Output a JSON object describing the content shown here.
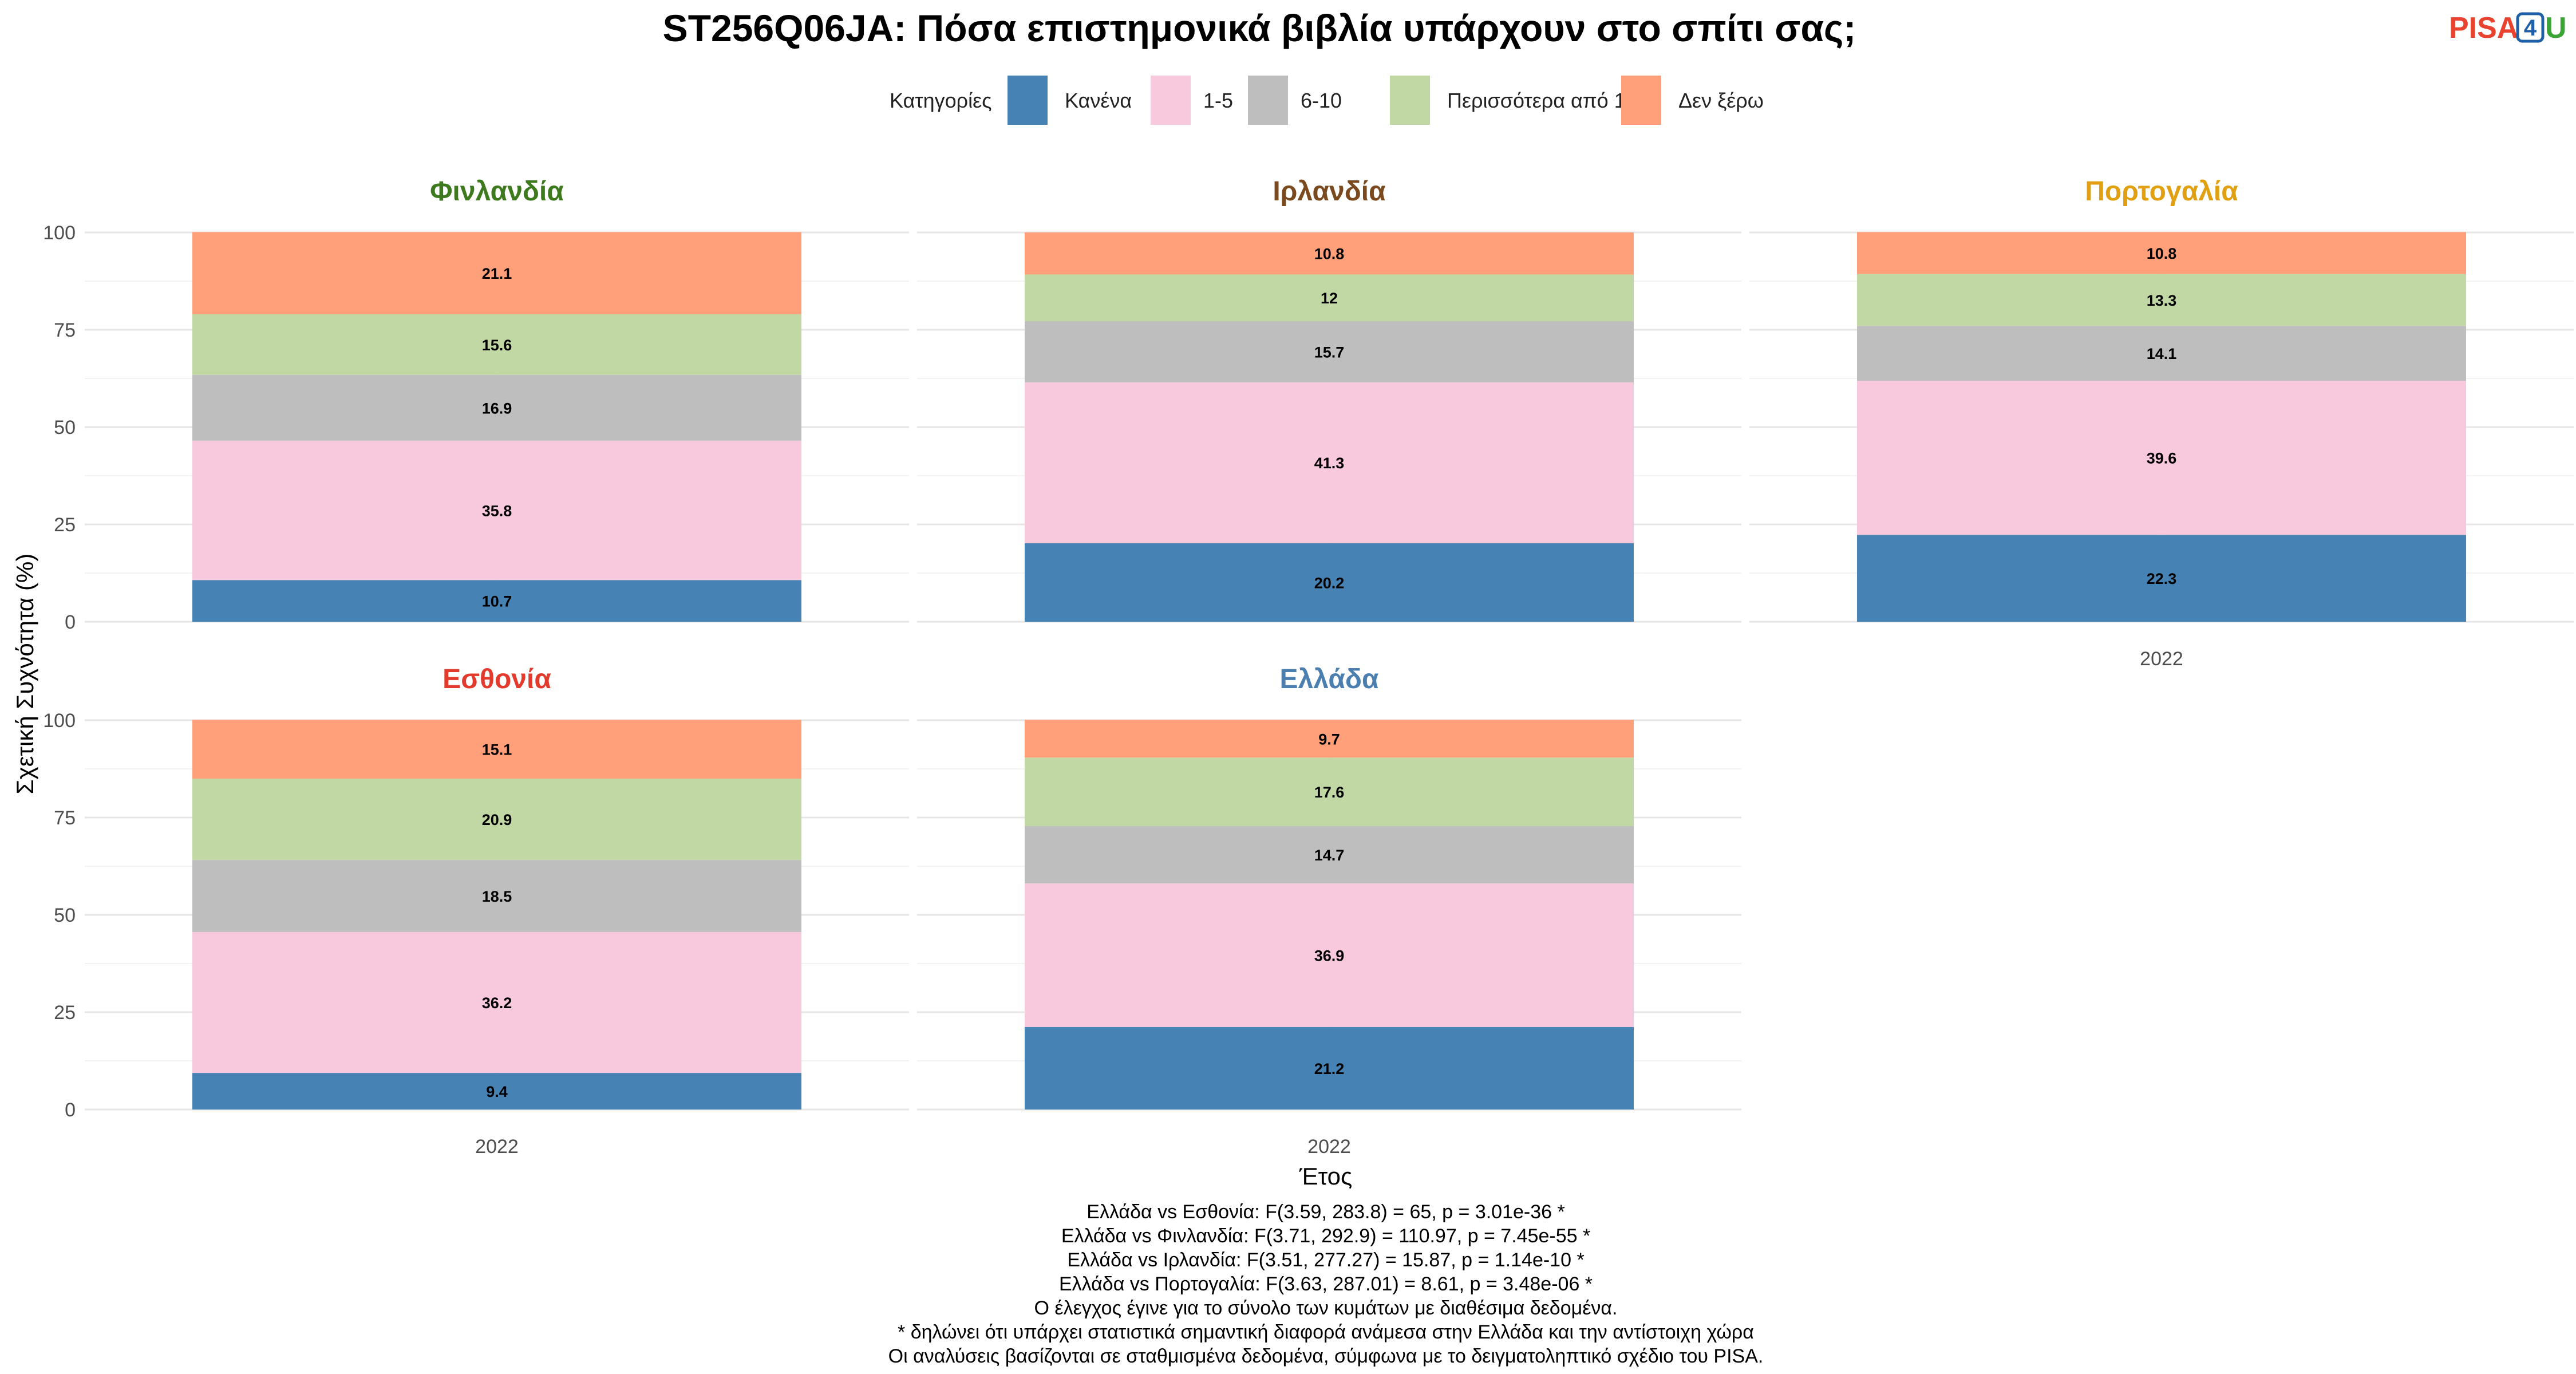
{
  "chart_data": {
    "type": "bar",
    "stacked": true,
    "title": "ST256Q06JA: Πόσα επιστημονικά βιβλία υπάρχουν στο σπίτι σας;",
    "legend_title": "Κατηγορίες",
    "legend_position": "top",
    "categories": [
      "Κανένα",
      "1-5",
      "6-10",
      "Περισσότερα από 10",
      "Δεν ξέρω"
    ],
    "colors": [
      "#4682b4",
      "#f8c8dc",
      "#bebebe",
      "#c1d7a4",
      "#ffa07a"
    ],
    "xlabel": "Έτος",
    "ylabel": "Σχετική Συχνότητα (%)",
    "ylim": [
      0,
      100
    ],
    "yticks": [
      "0",
      "25",
      "50",
      "75",
      "100"
    ],
    "grid": true,
    "panels": [
      {
        "country": "Φινλανδία",
        "color": "#3d7a1e",
        "year": "2022",
        "values": [
          10.7,
          35.8,
          16.9,
          15.6,
          21.1
        ],
        "labels": [
          "10.7",
          "35.8",
          "16.9",
          "15.6",
          "21.1"
        ]
      },
      {
        "country": "Ιρλανδία",
        "color": "#7a4a1e",
        "year": "2022",
        "values": [
          20.2,
          41.3,
          15.7,
          12.0,
          10.8
        ],
        "labels": [
          "20.2",
          "41.3",
          "15.7",
          "12",
          "10.8"
        ]
      },
      {
        "country": "Πορτογαλία",
        "color": "#e0a012",
        "year": "2022",
        "values": [
          22.3,
          39.6,
          14.1,
          13.3,
          10.8
        ],
        "labels": [
          "22.3",
          "39.6",
          "14.1",
          "13.3",
          "10.8"
        ]
      },
      {
        "country": "Εσθονία",
        "color": "#e23b2e",
        "year": "2022",
        "values": [
          9.4,
          36.2,
          18.5,
          20.9,
          15.1
        ],
        "labels": [
          "9.4",
          "36.2",
          "18.5",
          "20.9",
          "15.1"
        ]
      },
      {
        "country": "Ελλάδα",
        "color": "#4a7fb0",
        "year": "2022",
        "values": [
          21.2,
          36.9,
          14.7,
          17.6,
          9.7
        ],
        "labels": [
          "21.2",
          "36.9",
          "14.7",
          "17.6",
          "9.7"
        ]
      }
    ]
  },
  "footnotes": [
    "Ελλάδα vs Εσθονία: F(3.59, 283.8) = 65, p = 3.01e-36 *",
    "Ελλάδα vs Φινλανδία: F(3.71, 292.9) = 110.97, p = 7.45e-55 *",
    "Ελλάδα vs Ιρλανδία: F(3.51, 277.27) = 15.87, p = 1.14e-10 *",
    "Ελλάδα vs Πορτογαλία: F(3.63, 287.01) = 8.61, p = 3.48e-06 *",
    "Ο έλεγχος έγινε για το σύνολο των κυμάτων με διαθέσιμα δεδομένα.",
    "* δηλώνει ότι υπάρχει στατιστικά σημαντική διαφορά ανάμεσα στην Ελλάδα και την αντίστοιχη χώρα",
    "Οι αναλύσεις βασίζονται σε σταθμισμένα δεδομένα, σύμφωνα με το δειγματοληπτικό σχέδιο του PISA."
  ],
  "logo": {
    "part1": "PISA",
    "part2": "4",
    "part3": "U"
  }
}
